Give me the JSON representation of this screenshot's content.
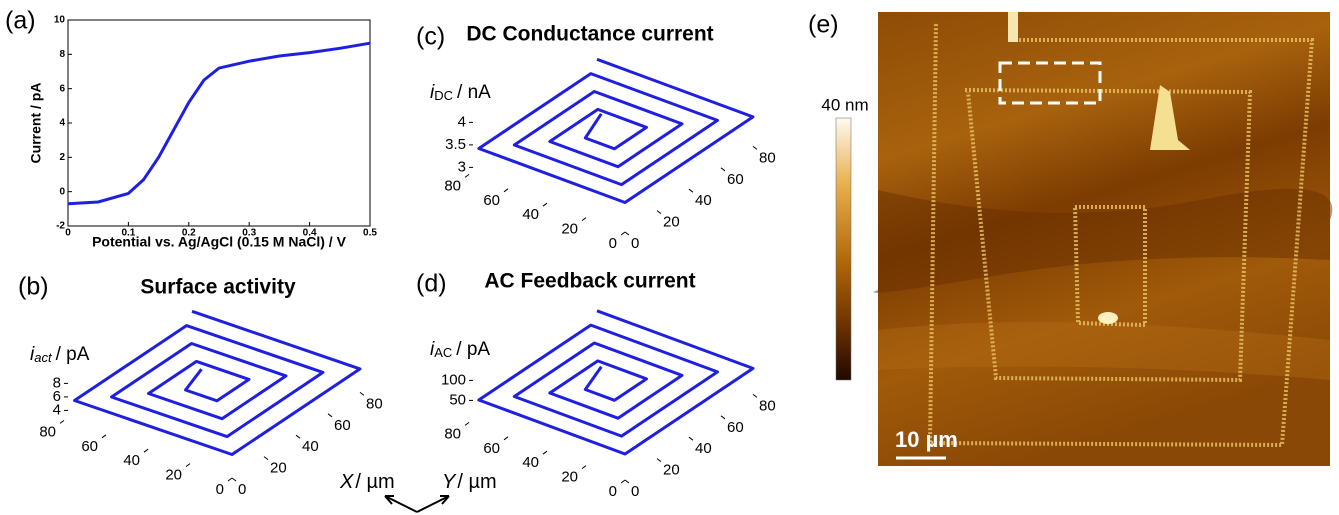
{
  "chart_data": [
    {
      "type": "line",
      "label": "(a)",
      "xlabel": "Potential vs. Ag/AgCl (0.15 M NaCl) / V",
      "ylabel": "Current / pA",
      "x": [
        0,
        0.05,
        0.1,
        0.125,
        0.15,
        0.175,
        0.2,
        0.225,
        0.25,
        0.3,
        0.35,
        0.4,
        0.45,
        0.5
      ],
      "values": [
        -0.7,
        -0.6,
        -0.1,
        0.7,
        2.0,
        3.6,
        5.2,
        6.5,
        7.2,
        7.6,
        7.9,
        8.1,
        8.35,
        8.65
      ],
      "color": "#1f1fe0",
      "xlim": [
        0,
        0.5
      ],
      "ylim": [
        -2,
        10
      ],
      "xticks": [
        0,
        0.1,
        0.2,
        0.3,
        0.4,
        0.5
      ],
      "yticks": [
        -2,
        0,
        2,
        4,
        6,
        8,
        10
      ]
    },
    {
      "type": "spiral3d",
      "label": "(b)",
      "title": "Surface activity",
      "zlabel": {
        "symbol": "i",
        "subscript": "act",
        "unit": "/ pA"
      },
      "xlim": [
        0,
        80
      ],
      "ylim": [
        0,
        80
      ],
      "zlim": [
        4,
        8
      ],
      "xticks": [
        0,
        20,
        40,
        60,
        80
      ],
      "yticks": [
        0,
        20,
        40,
        60,
        80
      ],
      "zticks": [
        4,
        6,
        8
      ],
      "x": [
        80,
        0,
        0,
        75,
        75,
        10,
        10,
        65,
        65,
        20,
        20,
        55,
        55,
        30,
        30,
        45,
        45
      ],
      "y": [
        80,
        80,
        0,
        0,
        70,
        70,
        10,
        10,
        60,
        60,
        20,
        20,
        50,
        50,
        30,
        30,
        40
      ],
      "z": [
        6,
        6,
        6,
        6,
        6,
        6,
        6,
        6,
        6,
        6,
        6,
        6,
        6,
        6,
        6,
        6,
        7.5
      ],
      "color": "#1f1fe0"
    },
    {
      "type": "spiral3d",
      "label": "(c)",
      "title": "DC Conductance current",
      "zlabel": {
        "symbol": "i",
        "subscript": "DC",
        "unit": "/ nA"
      },
      "xlim": [
        0,
        80
      ],
      "ylim": [
        0,
        80
      ],
      "zlim": [
        3,
        4
      ],
      "xticks": [
        0,
        20,
        40,
        60,
        80
      ],
      "yticks": [
        0,
        20,
        40,
        60,
        80
      ],
      "zticks": [
        3,
        3.5,
        4
      ],
      "x": [
        80,
        0,
        0,
        75,
        75,
        10,
        10,
        65,
        65,
        20,
        20,
        55,
        55,
        30,
        30,
        45,
        45
      ],
      "y": [
        80,
        80,
        0,
        0,
        70,
        70,
        10,
        10,
        60,
        60,
        20,
        20,
        50,
        50,
        30,
        30,
        40
      ],
      "z": [
        3.5,
        3.5,
        3.5,
        3.5,
        3.5,
        3.5,
        3.5,
        3.5,
        3.5,
        3.5,
        3.5,
        3.5,
        3.5,
        3.5,
        3.5,
        3.5,
        3.8
      ],
      "color": "#1f1fe0"
    },
    {
      "type": "spiral3d",
      "label": "(d)",
      "title": "AC Feedback current",
      "zlabel": {
        "symbol": "i",
        "subscript": "AC",
        "unit": "/ pA"
      },
      "xlim": [
        0,
        80
      ],
      "ylim": [
        0,
        80
      ],
      "zlim": [
        50,
        100
      ],
      "xticks": [
        0,
        20,
        40,
        60,
        80
      ],
      "yticks": [
        0,
        20,
        40,
        60,
        80
      ],
      "zticks": [
        50,
        100
      ],
      "x": [
        80,
        0,
        0,
        75,
        75,
        10,
        10,
        65,
        65,
        20,
        20,
        55,
        55,
        30,
        30,
        45,
        45
      ],
      "y": [
        80,
        80,
        0,
        0,
        70,
        70,
        10,
        10,
        60,
        60,
        20,
        20,
        50,
        50,
        30,
        30,
        40
      ],
      "z": [
        60,
        60,
        60,
        60,
        60,
        60,
        60,
        60,
        60,
        60,
        60,
        60,
        60,
        60,
        60,
        60,
        90
      ],
      "color": "#1f1fe0"
    },
    {
      "type": "image",
      "label": "(e)",
      "scalebar": "10 µm",
      "colorbar_label": "40 nm"
    }
  ],
  "axes_key": {
    "x": {
      "symbol": "X",
      "unit": "/ µm"
    },
    "y": {
      "symbol": "Y",
      "unit": "/ µm"
    }
  }
}
